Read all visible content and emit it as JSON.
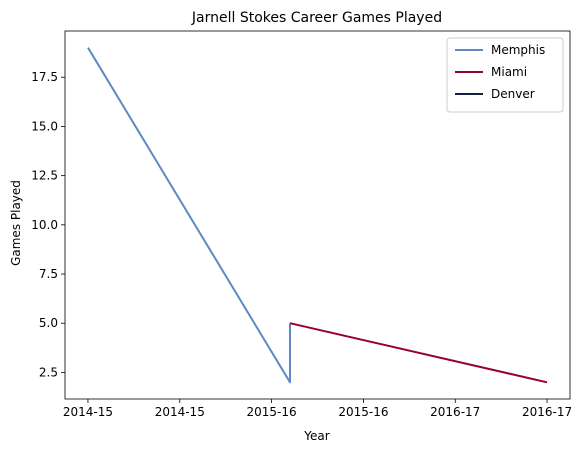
{
  "chart_data": {
    "type": "line",
    "title": "Jarnell Stokes Career Games Played",
    "xlabel": "Year",
    "ylabel": "Games Played",
    "x_tick_labels": [
      "2014-15",
      "2014-15",
      "2015-16",
      "2015-16",
      "2016-17",
      "2016-17"
    ],
    "x_tick_positions": [
      0,
      1,
      2,
      3,
      4,
      5
    ],
    "xlim": [
      -0.25,
      5.25
    ],
    "y_ticks": [
      2.5,
      5.0,
      7.5,
      10.0,
      12.5,
      15.0,
      17.5
    ],
    "y_tick_labels": [
      "2.5",
      "5.0",
      "7.5",
      "10.0",
      "12.5",
      "15.0",
      "17.5"
    ],
    "ylim": [
      1.15,
      19.85
    ],
    "grid": false,
    "legend_position": "top-right",
    "series": [
      {
        "name": "Memphis",
        "color": "#5D8AC2",
        "points": [
          [
            0,
            19
          ],
          [
            2.2,
            2
          ],
          [
            2.2,
            5
          ]
        ]
      },
      {
        "name": "Miami",
        "color": "#98002E",
        "points": [
          [
            2.2,
            5
          ],
          [
            5,
            2
          ]
        ]
      },
      {
        "name": "Denver",
        "color": "#0E2240",
        "points": []
      }
    ]
  }
}
